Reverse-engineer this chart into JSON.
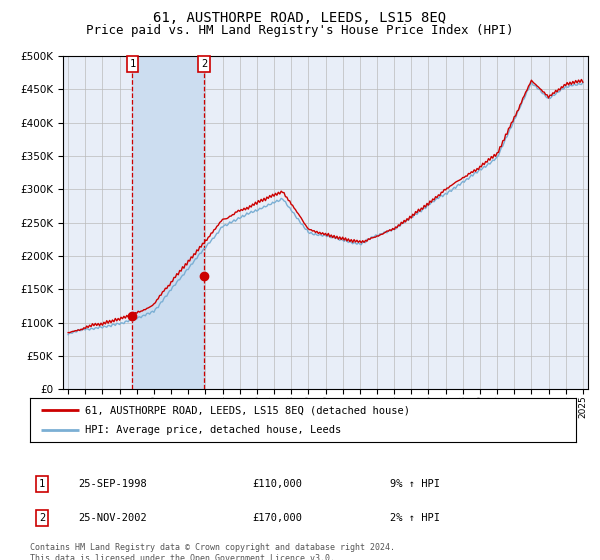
{
  "title": "61, AUSTHORPE ROAD, LEEDS, LS15 8EQ",
  "subtitle": "Price paid vs. HM Land Registry's House Price Index (HPI)",
  "ylim": [
    0,
    500000
  ],
  "yticks": [
    0,
    50000,
    100000,
    150000,
    200000,
    250000,
    300000,
    350000,
    400000,
    450000,
    500000
  ],
  "purchase1_year": 1998.75,
  "purchase1_price": 110000,
  "purchase2_year": 2002.917,
  "purchase2_price": 170000,
  "legend_line1": "61, AUSTHORPE ROAD, LEEDS, LS15 8EQ (detached house)",
  "legend_line2": "HPI: Average price, detached house, Leeds",
  "table_row1_num": "1",
  "table_row1_date": "25-SEP-1998",
  "table_row1_price": "£110,000",
  "table_row1_hpi": "9% ↑ HPI",
  "table_row2_num": "2",
  "table_row2_date": "25-NOV-2002",
  "table_row2_price": "£170,000",
  "table_row2_hpi": "2% ↑ HPI",
  "footer": "Contains HM Land Registry data © Crown copyright and database right 2024.\nThis data is licensed under the Open Government Licence v3.0.",
  "price_line_color": "#cc0000",
  "hpi_line_color": "#7bafd4",
  "plot_bg_color": "#e8eef8",
  "vspan_color": "#ccddf0",
  "grid_color": "#bbbbbb",
  "title_fontsize": 10,
  "subtitle_fontsize": 9
}
